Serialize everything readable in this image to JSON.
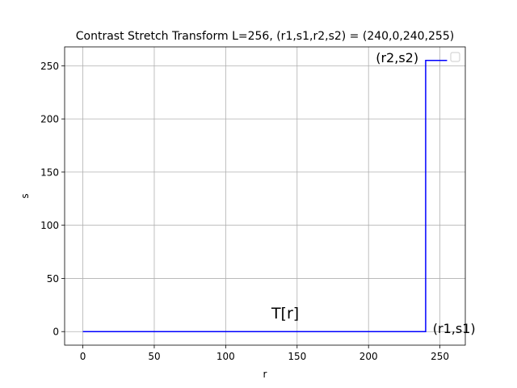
{
  "chart_data": {
    "type": "line",
    "title": "Contrast Stretch Transform L=256, (r1,s1,r2,s2) = (240,0,240,255)",
    "xlabel": "r",
    "ylabel": "s",
    "xlim": [
      -12.75,
      267.75
    ],
    "ylim": [
      -12.75,
      267.75
    ],
    "x_ticks": [
      0,
      50,
      100,
      150,
      200,
      250
    ],
    "y_ticks": [
      0,
      50,
      100,
      150,
      200,
      250
    ],
    "grid": true,
    "legend": "top-right",
    "line_color": "#0000ff",
    "series": [
      {
        "x": [
          0,
          240,
          240,
          255
        ],
        "y": [
          0,
          0,
          255,
          255
        ]
      }
    ],
    "annotations": [
      {
        "text": "(r1,s1)",
        "x": 245,
        "y": 0,
        "size": "small",
        "anchor": "start"
      },
      {
        "text": "(r2,s2)",
        "x": 235,
        "y": 255,
        "size": "small",
        "anchor": "end"
      },
      {
        "text": "T[r]",
        "x": 132,
        "y": 14,
        "size": "big",
        "anchor": "start"
      }
    ]
  }
}
